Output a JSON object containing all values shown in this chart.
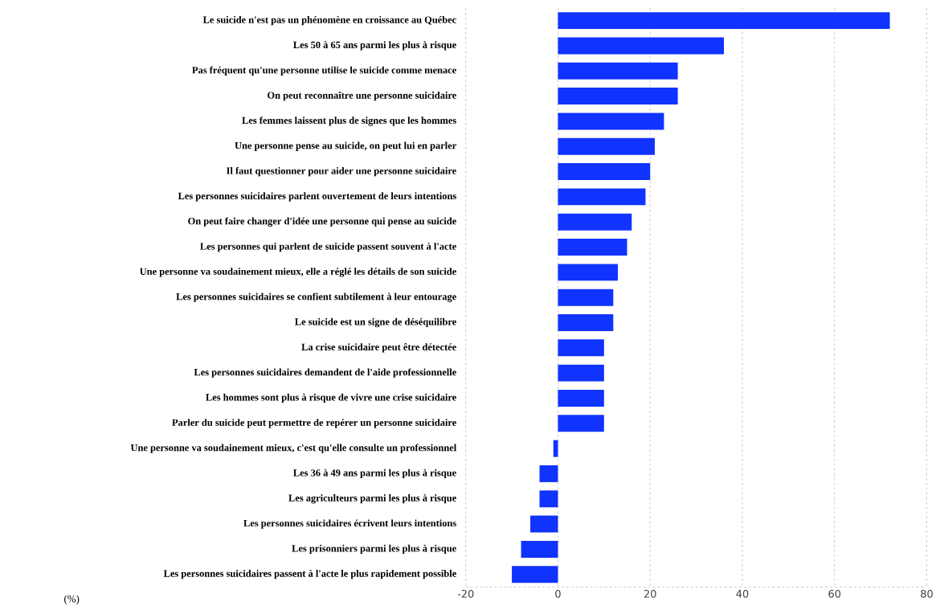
{
  "chart_data": {
    "type": "bar",
    "orientation": "horizontal",
    "xlabel": "(%)",
    "categories": [
      "Le suicide n'est pas un phénomène en croissance au Québec",
      "Les 50 à 65 ans parmi les plus à risque",
      "Pas fréquent qu'une personne utilise le suicide comme menace",
      "On peut reconnaître une personne suicidaire",
      "Les femmes laissent plus de signes que les hommes",
      "Une personne pense au suicide, on peut lui en parler",
      "Il faut questionner pour aider une personne suicidaire",
      "Les personnes suicidaires parlent ouvertement de leurs intentions",
      "On peut faire changer d'idée une personne qui pense au suicide",
      "Les personnes qui parlent de suicide passent souvent à l'acte",
      "Une personne va soudainement mieux, elle a réglé les détails de son suicide",
      "Les personnes suicidaires se confient subtilement à leur entourage",
      "Le suicide est un signe de déséquilibre",
      "La crise suicidaire peut être détectée",
      "Les personnes suicidaires demandent de l'aide professionnelle",
      "Les hommes sont plus à risque de vivre une crise suicidaire",
      "Parler du suicide peut permettre de repérer un personne suicidaire",
      "Une personne va soudainement mieux, c'est qu'elle consulte un professionnel",
      "Les 36 à 49 ans parmi les plus à risque",
      "Les agriculteurs parmi les plus à risque",
      "Les personnes suicidaires écrivent leurs intentions",
      "Les prisonniers parmi les plus à risque",
      "Les personnes suicidaires passent à l'acte le plus rapidement possible"
    ],
    "values": [
      72,
      36,
      26,
      26,
      23,
      21,
      20,
      19,
      16,
      15,
      13,
      12,
      12,
      10,
      10,
      10,
      10,
      -1,
      -4,
      -4,
      -6,
      -8,
      -10
    ],
    "color": "#1133ff",
    "xlim": [
      -20,
      80
    ],
    "xticks": [
      -20,
      0,
      20,
      40,
      60,
      80
    ],
    "grid": "x"
  }
}
